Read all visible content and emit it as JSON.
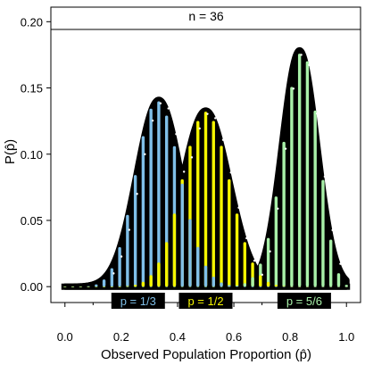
{
  "chart_data": {
    "type": "bar",
    "title": "n = 36",
    "xlabel": "Observed Population Proportion (p̂)",
    "ylabel": "P(p̂)",
    "xlim": [
      -0.05,
      1.05
    ],
    "ylim": [
      -0.012,
      0.211
    ],
    "grid": false,
    "x_ticks": [
      "0.0",
      "0.2",
      "0.4",
      "0.6",
      "0.8",
      "1.0"
    ],
    "y_ticks": [
      "0.00",
      "0.05",
      "0.10",
      "0.15",
      "0.20"
    ],
    "n": 36,
    "series": [
      {
        "name": "p = 1/3",
        "p": 0.3333,
        "color": "#7fbfe8"
      },
      {
        "name": "p = 1/2",
        "p": 0.5,
        "color": "#f5f500"
      },
      {
        "name": "p = 5/6",
        "p": 0.8333,
        "color": "#a8f0a8"
      }
    ],
    "legend_placement": "bottom"
  }
}
